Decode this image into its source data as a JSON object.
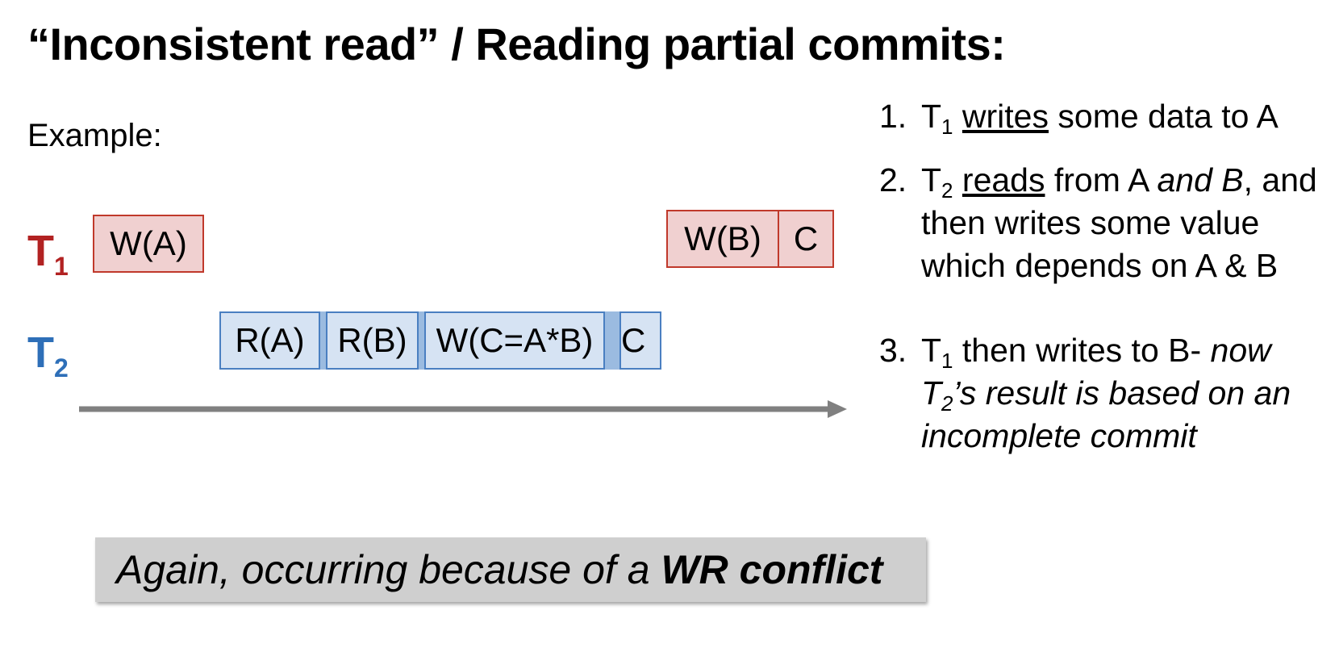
{
  "title": "“Inconsistent read” / Reading partial commits:",
  "example_label": "Example:",
  "colors": {
    "t1": "#b22222",
    "t2": "#2e6fb8",
    "t1_box_fill": "#f0d0d0",
    "t2_box_fill": "#d6e3f3",
    "arrow": "#808080",
    "callout_fill": "#cfcfcf"
  },
  "transactions": [
    {
      "name": "T",
      "index": "1"
    },
    {
      "name": "T",
      "index": "2"
    }
  ],
  "t1_ops": [
    "W(A)",
    "W(B)",
    "C"
  ],
  "t2_ops": [
    "R(A)",
    "R(B)",
    "W(C=A*B)",
    "C"
  ],
  "steps": [
    {
      "number": "1.",
      "t": "T",
      "sub": "1",
      "verb": "writes",
      "text": " some data to A"
    },
    {
      "number": "2.",
      "t": "T",
      "sub": "2",
      "verb": "reads",
      "text1": " from A ",
      "emph": "and B",
      "text2": ", and then writes some value which depends on A & B"
    },
    {
      "number": "3.",
      "t": "T",
      "sub": "1",
      "text1": " then writes to B- ",
      "emph1": "now",
      "emph_t": "T",
      "emph_sub": "2",
      "emph2": "’s result is based on an incomplete commit"
    }
  ],
  "callout": {
    "prefix": "Again, occurring because of a ",
    "emphasis": "WR conflict"
  }
}
